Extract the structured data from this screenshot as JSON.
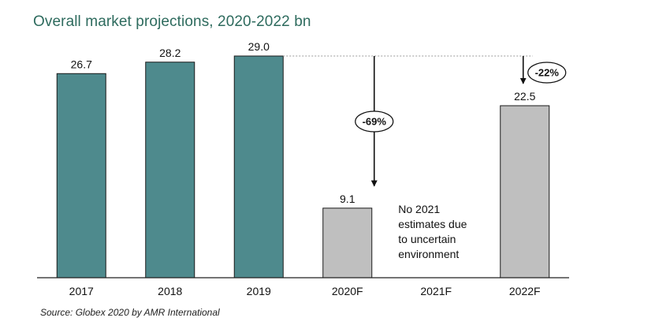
{
  "title": "Overall market projections, 2020-2022 bn",
  "source": "Source: Globex 2020 by AMR International",
  "colors": {
    "historic": "#4e8a8d",
    "forecast": "#bfbfbf",
    "title": "#2e6b5e"
  },
  "chart_data": {
    "type": "bar",
    "title": "Overall market projections, 2020-2022 bn",
    "categories": [
      "2017",
      "2018",
      "2019",
      "2020F",
      "2021F",
      "2022F"
    ],
    "values": [
      26.7,
      28.2,
      29.0,
      9.1,
      null,
      22.5
    ],
    "labels": [
      "26.7",
      "28.2",
      "29.0",
      "9.1",
      "",
      "22.5"
    ],
    "bar_kinds": [
      "historic",
      "historic",
      "historic",
      "forecast",
      "none",
      "forecast"
    ],
    "ylim": [
      0,
      29.0
    ],
    "grid": false,
    "reference_line": {
      "from": "2019",
      "value": 29.0,
      "style": "dotted"
    },
    "annotations": [
      {
        "category": "2020F",
        "text": "-69%"
      },
      {
        "category": "2022F",
        "text": "-22%"
      }
    ],
    "note": {
      "category": "2021F",
      "lines": [
        "No 2021",
        "estimates due",
        "to uncertain",
        "environment"
      ]
    }
  }
}
